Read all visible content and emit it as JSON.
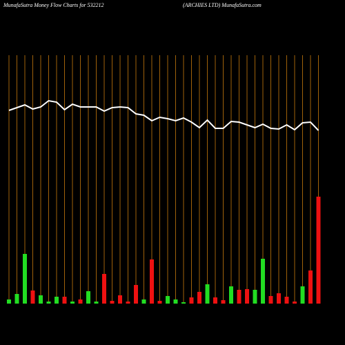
{
  "chart_data": {
    "type": "bar",
    "title": "MunafaSutra  Money Flow  Charts for 532212",
    "subtitle": "(ARCHIES LTD) MunafaSutra.com",
    "ylim": [
      0,
      360
    ],
    "grid_color": "#a0620a",
    "values": [
      6,
      14,
      72,
      19,
      12,
      3,
      10,
      10,
      3,
      6,
      18,
      3,
      43,
      4,
      12,
      3,
      27,
      6,
      64,
      4,
      11,
      6,
      2,
      9,
      17,
      28,
      9,
      5,
      25,
      20,
      21,
      20,
      65,
      11,
      15,
      10,
      3,
      25,
      48,
      155
    ],
    "colors": [
      "#22dd22",
      "#22dd22",
      "#22dd22",
      "#ee1111",
      "#22dd22",
      "#22dd22",
      "#22dd22",
      "#ee1111",
      "#22dd22",
      "#ee1111",
      "#22dd22",
      "#22dd22",
      "#ee1111",
      "#ee1111",
      "#ee1111",
      "#ee1111",
      "#ee1111",
      "#22dd22",
      "#ee1111",
      "#ee1111",
      "#22dd22",
      "#22dd22",
      "#22dd22",
      "#ee1111",
      "#ee1111",
      "#22dd22",
      "#ee1111",
      "#ee1111",
      "#22dd22",
      "#ee1111",
      "#ee1111",
      "#22dd22",
      "#22dd22",
      "#ee1111",
      "#ee1111",
      "#ee1111",
      "#ee1111",
      "#22dd22",
      "#ee1111",
      "#ee1111"
    ],
    "line": {
      "color": "#ffffff",
      "values": [
        280,
        284,
        288,
        282,
        285,
        294,
        292,
        281,
        289,
        285,
        285,
        285,
        279,
        284,
        285,
        284,
        275,
        273,
        265,
        270,
        268,
        265,
        269,
        263,
        255,
        266,
        254,
        254,
        264,
        263,
        259,
        255,
        260,
        254,
        253,
        259,
        252,
        262,
        263,
        251
      ]
    }
  }
}
